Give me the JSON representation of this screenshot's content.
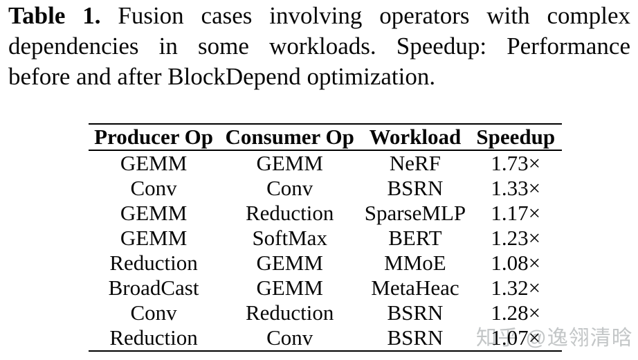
{
  "caption": {
    "label": "Table 1.",
    "line1_rest": "Fusion cases involving operators with complex",
    "line2": "dependencies in some workloads. Speedup: Performance",
    "line3": "before and after BlockDepend optimization."
  },
  "table": {
    "headers": [
      "Producer Op",
      "Consumer Op",
      "Workload",
      "Speedup"
    ],
    "rows": [
      [
        "GEMM",
        "GEMM",
        "NeRF",
        "1.73×"
      ],
      [
        "Conv",
        "Conv",
        "BSRN",
        "1.33×"
      ],
      [
        "GEMM",
        "Reduction",
        "SparseMLP",
        "1.17×"
      ],
      [
        "GEMM",
        "SoftMax",
        "BERT",
        "1.23×"
      ],
      [
        "Reduction",
        "GEMM",
        "MMoE",
        "1.08×"
      ],
      [
        "BroadCast",
        "GEMM",
        "MetaHeac",
        "1.32×"
      ],
      [
        "Conv",
        "Reduction",
        "BSRN",
        "1.28×"
      ],
      [
        "Reduction",
        "Conv",
        "BSRN",
        "1.07×"
      ]
    ]
  },
  "watermark": {
    "text": "知乎 @逸翎清晗",
    "color": "#c3c6c7"
  },
  "colors": {
    "text": "#070707",
    "background": "#ffffff",
    "rule": "#000000"
  }
}
